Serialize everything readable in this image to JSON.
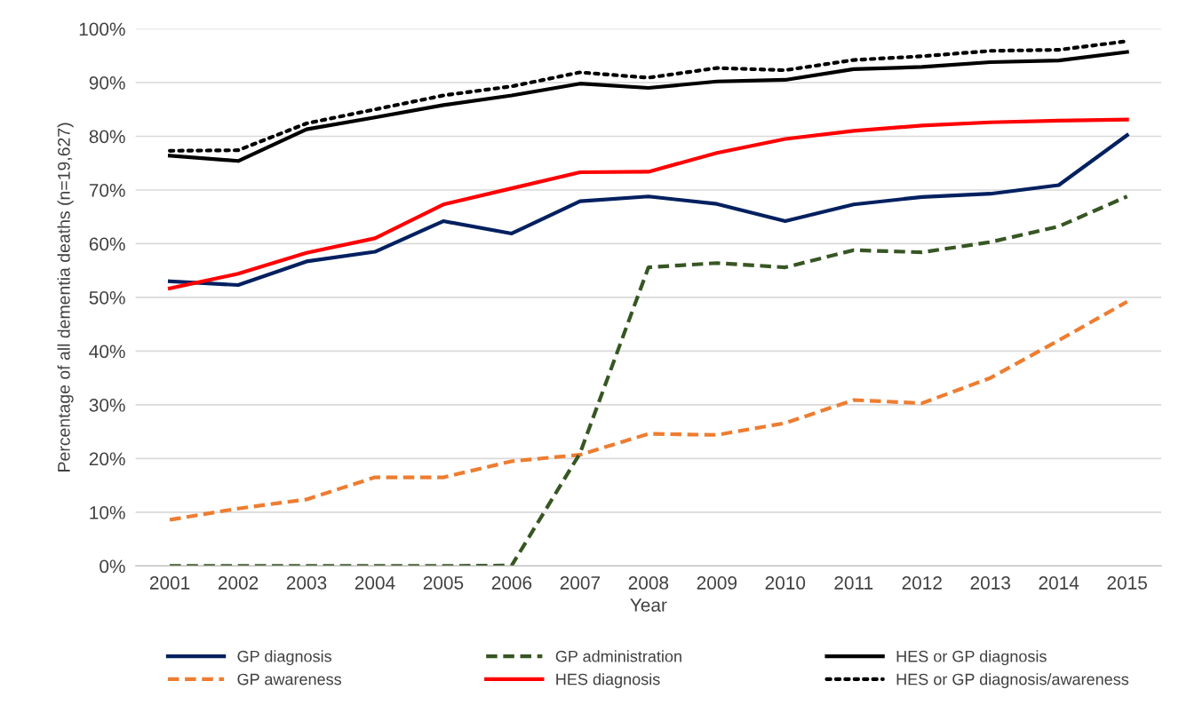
{
  "chart_data": {
    "type": "line",
    "xlabel": "Year",
    "ylabel": "Percentage of all dementia deaths (n=19,627)",
    "categories": [
      "2001",
      "2002",
      "2003",
      "2004",
      "2005",
      "2006",
      "2007",
      "2008",
      "2009",
      "2010",
      "2011",
      "2012",
      "2013",
      "2014",
      "2015"
    ],
    "ylim": [
      0,
      100
    ],
    "yticks": [
      {
        "value": 0,
        "label": "0%"
      },
      {
        "value": 10,
        "label": "10%"
      },
      {
        "value": 20,
        "label": "20%"
      },
      {
        "value": 30,
        "label": "30%"
      },
      {
        "value": 40,
        "label": "40%"
      },
      {
        "value": 50,
        "label": "50%"
      },
      {
        "value": 60,
        "label": "60%"
      },
      {
        "value": 70,
        "label": "70%"
      },
      {
        "value": 80,
        "label": "80%"
      },
      {
        "value": 90,
        "label": "90%"
      },
      {
        "value": 100,
        "label": "100%"
      }
    ],
    "grid": "y",
    "legend": "bottom",
    "marker": "none",
    "series": [
      {
        "name": "GP diagnosis",
        "color": "#002060",
        "line_style": "solid",
        "values": [
          53.0,
          52.3,
          56.7,
          58.5,
          64.2,
          61.9,
          67.9,
          68.8,
          67.4,
          64.2,
          67.3,
          68.7,
          69.3,
          70.9,
          80.2
        ]
      },
      {
        "name": "GP awareness",
        "color": "#ed7d31",
        "line_style": "dashed",
        "values": [
          8.6,
          10.7,
          12.4,
          16.5,
          16.5,
          19.5,
          20.7,
          24.6,
          24.4,
          26.6,
          30.9,
          30.3,
          35.0,
          42.0,
          49.2
        ]
      },
      {
        "name": "GP administration",
        "color": "#375623",
        "line_style": "dashed",
        "values": [
          0,
          0,
          0,
          0,
          0,
          0.1,
          21.0,
          55.6,
          56.4,
          55.6,
          58.8,
          58.4,
          60.3,
          63.2,
          68.8
        ]
      },
      {
        "name": "HES diagnosis",
        "color": "#ff0000",
        "line_style": "solid",
        "values": [
          51.7,
          54.4,
          58.3,
          61.0,
          67.3,
          70.3,
          73.3,
          73.4,
          76.9,
          79.5,
          81.0,
          82.0,
          82.6,
          82.9,
          83.1
        ]
      },
      {
        "name": "HES or GP diagnosis",
        "color": "#000000",
        "line_style": "solid",
        "values": [
          76.4,
          75.4,
          81.3,
          83.5,
          85.8,
          87.6,
          89.8,
          89.0,
          90.2,
          90.5,
          92.5,
          92.9,
          93.8,
          94.1,
          95.7
        ]
      },
      {
        "name": "HES or GP diagnosis/awareness",
        "color": "#000000",
        "line_style": "dotted",
        "values": [
          77.3,
          77.4,
          82.4,
          85.0,
          87.6,
          89.3,
          91.9,
          90.9,
          92.7,
          92.3,
          94.2,
          94.9,
          95.9,
          96.1,
          97.7
        ]
      }
    ]
  }
}
